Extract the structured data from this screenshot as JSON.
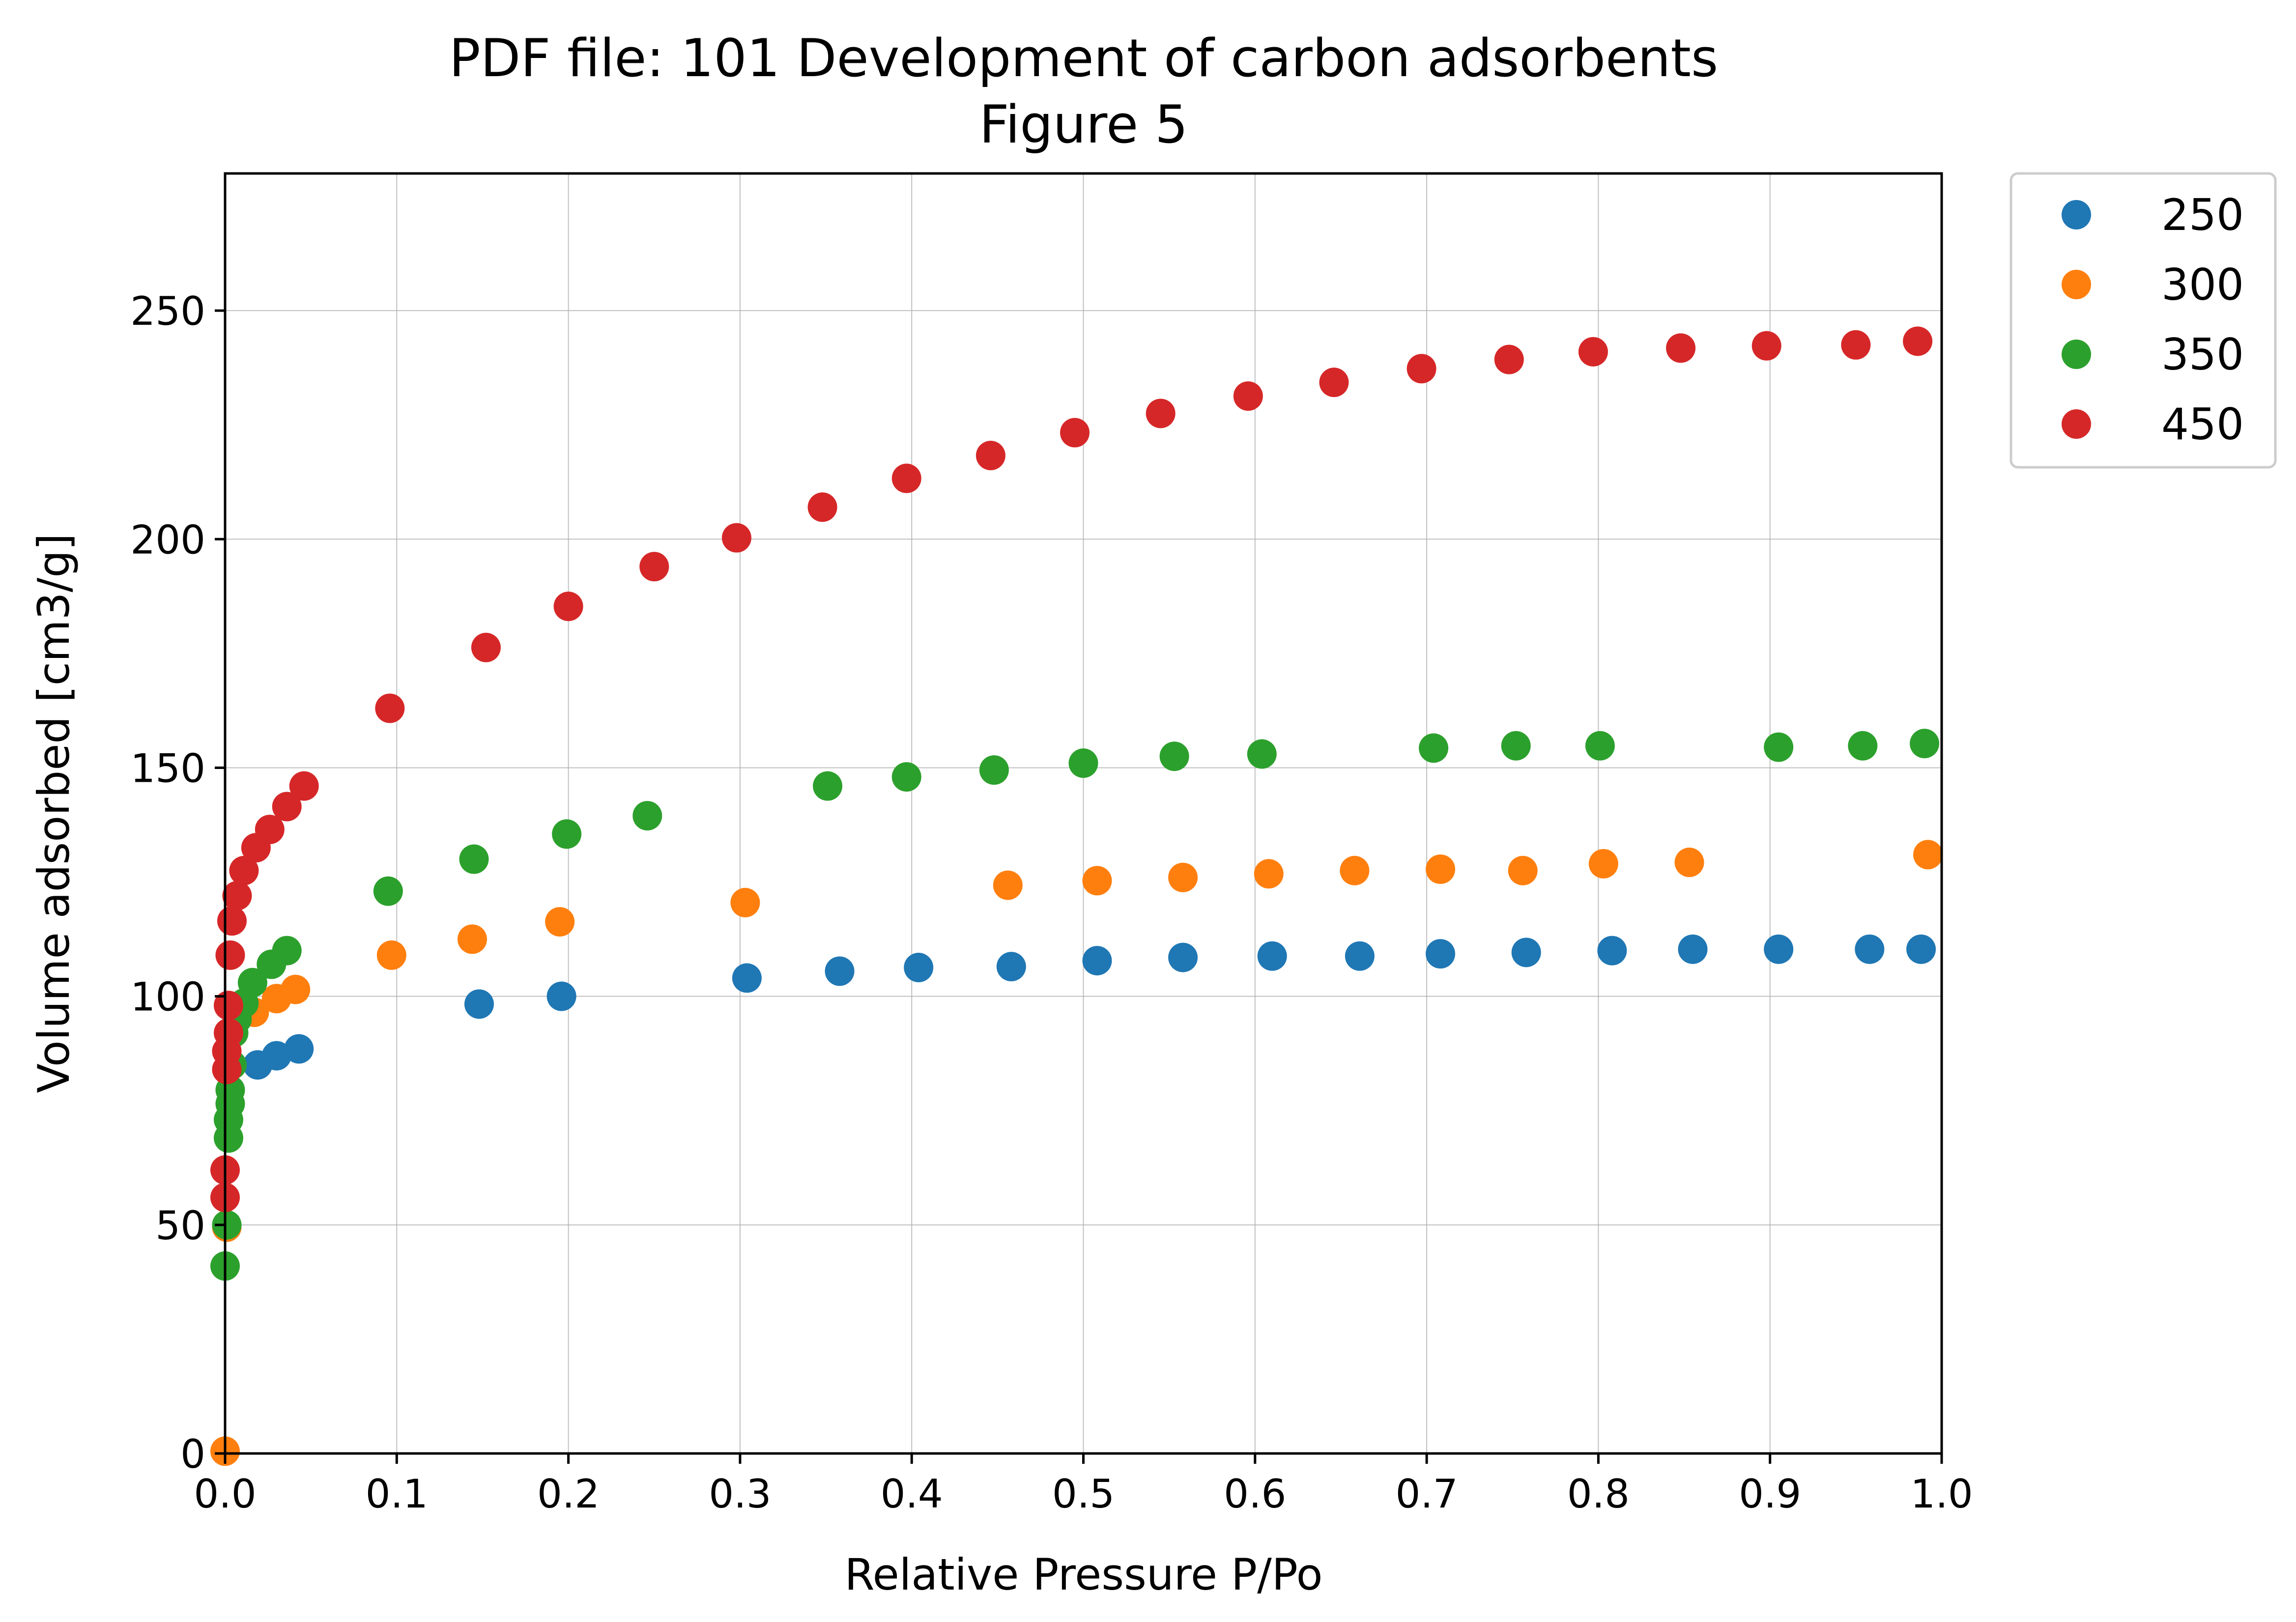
{
  "chart_data": {
    "type": "scatter",
    "title": "PDF file: 101 Development of carbon adsorbents",
    "subtitle": "Figure 5",
    "xlabel": "Relative Pressure P/Po",
    "ylabel": "Volume adsorbed [cm3/g]",
    "xlim": [
      0,
      1
    ],
    "ylim": [
      0,
      280
    ],
    "xticks": [
      "0.0",
      "0.1",
      "0.2",
      "0.3",
      "0.4",
      "0.5",
      "0.6",
      "0.7",
      "0.8",
      "0.9",
      "1.0"
    ],
    "yticks": [
      "0",
      "50",
      "100",
      "150",
      "200",
      "250"
    ],
    "grid": true,
    "legend_position": "outside-top-right",
    "series": [
      {
        "name": "250",
        "color": "#1f77b4",
        "points": [
          [
            0.019,
            85.0
          ],
          [
            0.03,
            87.0
          ],
          [
            0.043,
            88.5
          ],
          [
            0.148,
            98.3
          ],
          [
            0.196,
            100.0
          ],
          [
            0.304,
            104.0
          ],
          [
            0.358,
            105.5
          ],
          [
            0.404,
            106.3
          ],
          [
            0.458,
            106.5
          ],
          [
            0.508,
            107.8
          ],
          [
            0.558,
            108.5
          ],
          [
            0.61,
            108.8
          ],
          [
            0.661,
            108.8
          ],
          [
            0.708,
            109.3
          ],
          [
            0.758,
            109.6
          ],
          [
            0.808,
            110.0
          ],
          [
            0.855,
            110.3
          ],
          [
            0.905,
            110.3
          ],
          [
            0.958,
            110.3
          ],
          [
            0.988,
            110.3
          ]
        ]
      },
      {
        "name": "300",
        "color": "#ff7f0e",
        "points": [
          [
            0.0,
            0.5
          ],
          [
            0.001,
            49.5
          ],
          [
            0.017,
            96.5
          ],
          [
            0.03,
            99.5
          ],
          [
            0.041,
            101.5
          ],
          [
            0.097,
            109.0
          ],
          [
            0.144,
            112.5
          ],
          [
            0.195,
            116.3
          ],
          [
            0.303,
            120.5
          ],
          [
            0.456,
            124.3
          ],
          [
            0.508,
            125.3
          ],
          [
            0.558,
            126.0
          ],
          [
            0.608,
            126.8
          ],
          [
            0.658,
            127.5
          ],
          [
            0.708,
            127.8
          ],
          [
            0.756,
            127.5
          ],
          [
            0.803,
            129.0
          ],
          [
            0.853,
            129.3
          ],
          [
            0.992,
            131.0
          ]
        ]
      },
      {
        "name": "350",
        "color": "#2ca02c",
        "points": [
          [
            0.0,
            41.0
          ],
          [
            0.001,
            50.0
          ],
          [
            0.002,
            69.0
          ],
          [
            0.002,
            73.0
          ],
          [
            0.003,
            76.5
          ],
          [
            0.003,
            79.5
          ],
          [
            0.004,
            85.0
          ],
          [
            0.005,
            92.0
          ],
          [
            0.007,
            95.0
          ],
          [
            0.011,
            98.5
          ],
          [
            0.016,
            103.0
          ],
          [
            0.027,
            107.0
          ],
          [
            0.036,
            110.0
          ],
          [
            0.095,
            123.0
          ],
          [
            0.145,
            130.0
          ],
          [
            0.199,
            135.5
          ],
          [
            0.246,
            139.5
          ],
          [
            0.351,
            146.0
          ],
          [
            0.397,
            148.0
          ],
          [
            0.448,
            149.5
          ],
          [
            0.5,
            151.0
          ],
          [
            0.553,
            152.5
          ],
          [
            0.604,
            153.0
          ],
          [
            0.704,
            154.3
          ],
          [
            0.752,
            154.8
          ],
          [
            0.801,
            154.8
          ],
          [
            0.905,
            154.5
          ],
          [
            0.954,
            154.8
          ],
          [
            0.99,
            155.3
          ]
        ]
      },
      {
        "name": "450",
        "color": "#d62728",
        "points": [
          [
            0.0,
            56.0
          ],
          [
            0.0,
            62.0
          ],
          [
            0.001,
            84.0
          ],
          [
            0.001,
            88.0
          ],
          [
            0.002,
            92.0
          ],
          [
            0.002,
            98.0
          ],
          [
            0.003,
            109.0
          ],
          [
            0.004,
            116.5
          ],
          [
            0.007,
            122.0
          ],
          [
            0.011,
            127.5
          ],
          [
            0.018,
            132.5
          ],
          [
            0.026,
            136.5
          ],
          [
            0.036,
            141.5
          ],
          [
            0.046,
            146.0
          ],
          [
            0.096,
            163.0
          ],
          [
            0.152,
            176.3
          ],
          [
            0.2,
            185.3
          ],
          [
            0.25,
            194.0
          ],
          [
            0.298,
            200.3
          ],
          [
            0.348,
            207.0
          ],
          [
            0.397,
            213.3
          ],
          [
            0.446,
            218.3
          ],
          [
            0.495,
            223.3
          ],
          [
            0.545,
            227.5
          ],
          [
            0.596,
            231.3
          ],
          [
            0.646,
            234.3
          ],
          [
            0.697,
            237.3
          ],
          [
            0.748,
            239.3
          ],
          [
            0.797,
            241.0
          ],
          [
            0.848,
            241.8
          ],
          [
            0.898,
            242.3
          ],
          [
            0.95,
            242.5
          ],
          [
            0.986,
            243.3
          ]
        ]
      }
    ]
  }
}
